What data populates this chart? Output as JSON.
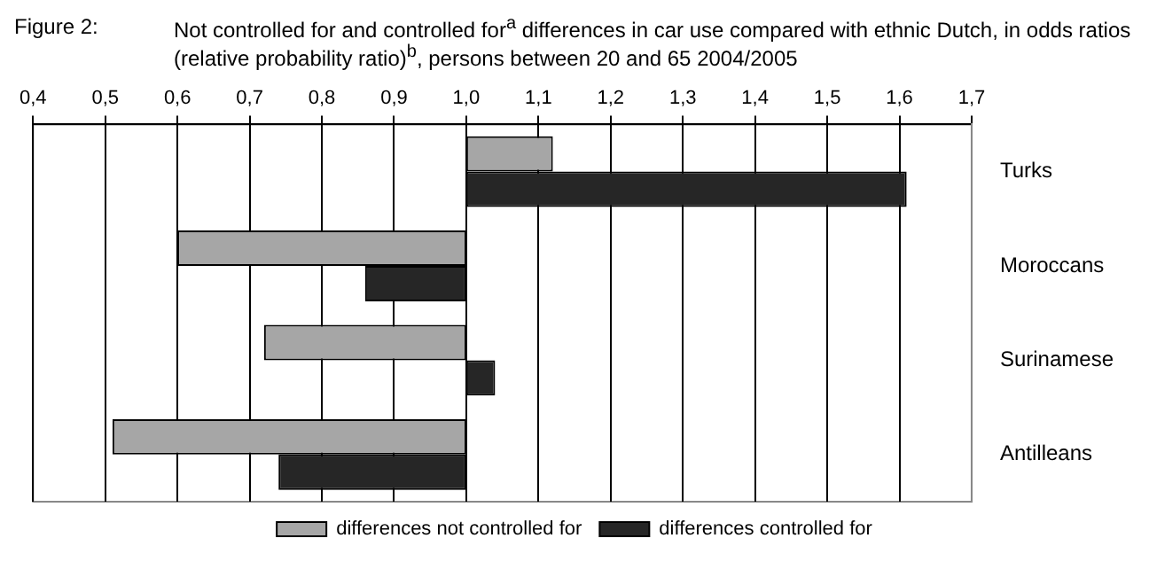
{
  "chart_data": {
    "type": "bar",
    "orientation": "horizontal",
    "title": "Not controlled for and controlled for$^{a}$ differences in car use compared with ethnic Dutch, in odds ratios (relative probability ratio)$^{b}$, persons between 20 and 65 2004/2005",
    "annotations": [
      "Figure 2:"
    ],
    "categories": [
      "Turks",
      "Moroccans",
      "Surinamese",
      "Antilleans"
    ],
    "series": [
      {
        "name": "differences not controlled for",
        "color": "#a6a6a6",
        "base": [
          1,
          1,
          1,
          1
        ],
        "values": [
          0.12,
          -0.4,
          -0.28,
          -0.49
        ]
      },
      {
        "name": "differences controlled for",
        "color": "#262626",
        "base": [
          1,
          1,
          1,
          1
        ],
        "values": [
          0.61,
          -0.14,
          0.04,
          -0.26
        ]
      }
    ],
    "xlim": [
      0.4,
      1.7
    ],
    "xticks": [
      {
        "value": 0.4,
        "label": "0,4"
      },
      {
        "value": 0.5,
        "label": "0,5"
      },
      {
        "value": 0.6,
        "label": "0,6"
      },
      {
        "value": 0.7,
        "label": "0,7"
      },
      {
        "value": 0.8,
        "label": "0,8"
      },
      {
        "value": 0.9,
        "label": "0,9"
      },
      {
        "value": 1.0,
        "label": "1,0"
      },
      {
        "value": 1.1,
        "label": "1,1"
      },
      {
        "value": 1.2,
        "label": "1,2"
      },
      {
        "value": 1.3,
        "label": "1,3"
      },
      {
        "value": 1.4,
        "label": "1,4"
      },
      {
        "value": 1.5,
        "label": "1,5"
      },
      {
        "value": 1.6,
        "label": "1,6"
      },
      {
        "value": 1.7,
        "label": "1,7"
      }
    ],
    "grid": "x",
    "legend": "bottom"
  }
}
